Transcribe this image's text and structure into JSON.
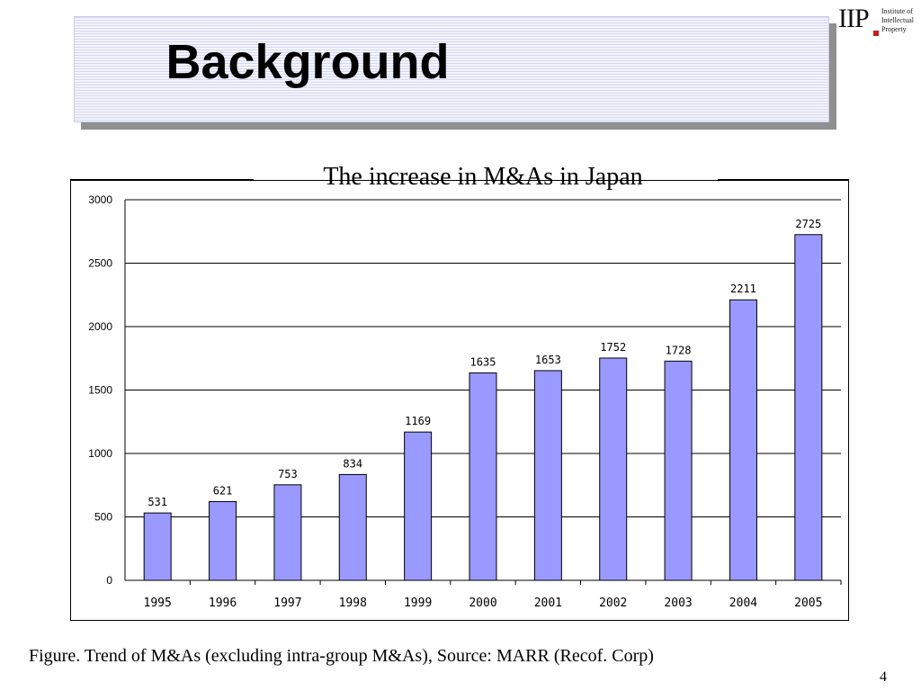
{
  "slide": {
    "title": "Background",
    "figure_caption": "Figure. Trend of M&As (excluding intra-group M&As), Source: MARR (Recof. Corp)",
    "page_number": "4"
  },
  "logo": {
    "letters": "IIP",
    "name": "Institute of Intellectual Property"
  },
  "colors": {
    "bar_fill": "#9999ff",
    "bar_stroke": "#000000",
    "gridline": "#000000",
    "logo_dot": "#d11a1a"
  },
  "chart_data": {
    "type": "bar",
    "title": "The increase in M&As in Japan",
    "categories": [
      "1995",
      "1996",
      "1997",
      "1998",
      "1999",
      "2000",
      "2001",
      "2002",
      "2003",
      "2004",
      "2005"
    ],
    "values": [
      531,
      621,
      753,
      834,
      1169,
      1635,
      1653,
      1752,
      1728,
      2211,
      2725
    ],
    "data_labels": true,
    "yticks": [
      0,
      500,
      1000,
      1500,
      2000,
      2500,
      3000
    ],
    "ylim": [
      0,
      3000
    ],
    "xlabel": "",
    "ylabel": "",
    "grid": true,
    "legend": "none"
  }
}
